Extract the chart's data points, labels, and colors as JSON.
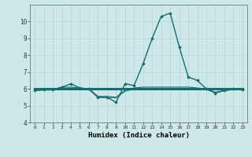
{
  "xlabel": "Humidex (Indice chaleur)",
  "bg_color": "#cce8e8",
  "line_color": "#1a6b6b",
  "grid_color": "#b8d8d8",
  "xlim": [
    -0.5,
    23.5
  ],
  "ylim": [
    4,
    11
  ],
  "yticks": [
    4,
    5,
    6,
    7,
    8,
    9,
    10
  ],
  "xticks": [
    0,
    1,
    2,
    3,
    4,
    5,
    6,
    7,
    8,
    9,
    10,
    11,
    12,
    13,
    14,
    15,
    16,
    17,
    18,
    19,
    20,
    21,
    22,
    23
  ],
  "lines": [
    {
      "x": [
        0,
        1,
        2,
        3,
        4,
        5,
        6,
        7,
        8,
        9,
        10,
        11,
        12,
        13,
        14,
        15,
        16,
        17,
        18,
        19,
        20,
        21,
        22,
        23
      ],
      "y": [
        5.9,
        5.95,
        5.95,
        6.1,
        6.3,
        6.05,
        6.0,
        5.5,
        5.5,
        5.2,
        6.3,
        6.2,
        7.5,
        9.0,
        10.3,
        10.5,
        8.5,
        6.7,
        6.5,
        6.0,
        5.75,
        5.9,
        6.0,
        5.95
      ],
      "marker": "D",
      "markersize": 1.8,
      "linewidth": 1.0
    },
    {
      "x": [
        0,
        23
      ],
      "y": [
        6.0,
        6.0
      ],
      "marker": null,
      "linewidth": 2.2
    },
    {
      "x": [
        0,
        1,
        2,
        3,
        4,
        5,
        6,
        7,
        8,
        9,
        10,
        11,
        12,
        13,
        14,
        15,
        16,
        17,
        18,
        19,
        20,
        21,
        22,
        23
      ],
      "y": [
        5.9,
        5.95,
        5.95,
        6.1,
        6.1,
        6.05,
        6.0,
        5.55,
        5.55,
        5.5,
        5.9,
        6.05,
        6.1,
        6.1,
        6.1,
        6.1,
        6.1,
        6.1,
        6.05,
        6.0,
        5.8,
        5.9,
        6.0,
        5.95
      ],
      "marker": null,
      "linewidth": 0.8
    },
    {
      "x": [
        0,
        1,
        2,
        3,
        4,
        5,
        6,
        7,
        8,
        9,
        10,
        11,
        12,
        13,
        14,
        15,
        16,
        17,
        18,
        19,
        20,
        21,
        22,
        23
      ],
      "y": [
        5.9,
        5.92,
        5.92,
        6.0,
        6.0,
        5.98,
        5.95,
        5.48,
        5.48,
        5.45,
        5.85,
        5.98,
        6.0,
        6.0,
        6.0,
        6.0,
        6.0,
        6.0,
        5.98,
        5.95,
        5.78,
        5.88,
        5.95,
        5.92
      ],
      "marker": null,
      "linewidth": 0.6
    }
  ]
}
